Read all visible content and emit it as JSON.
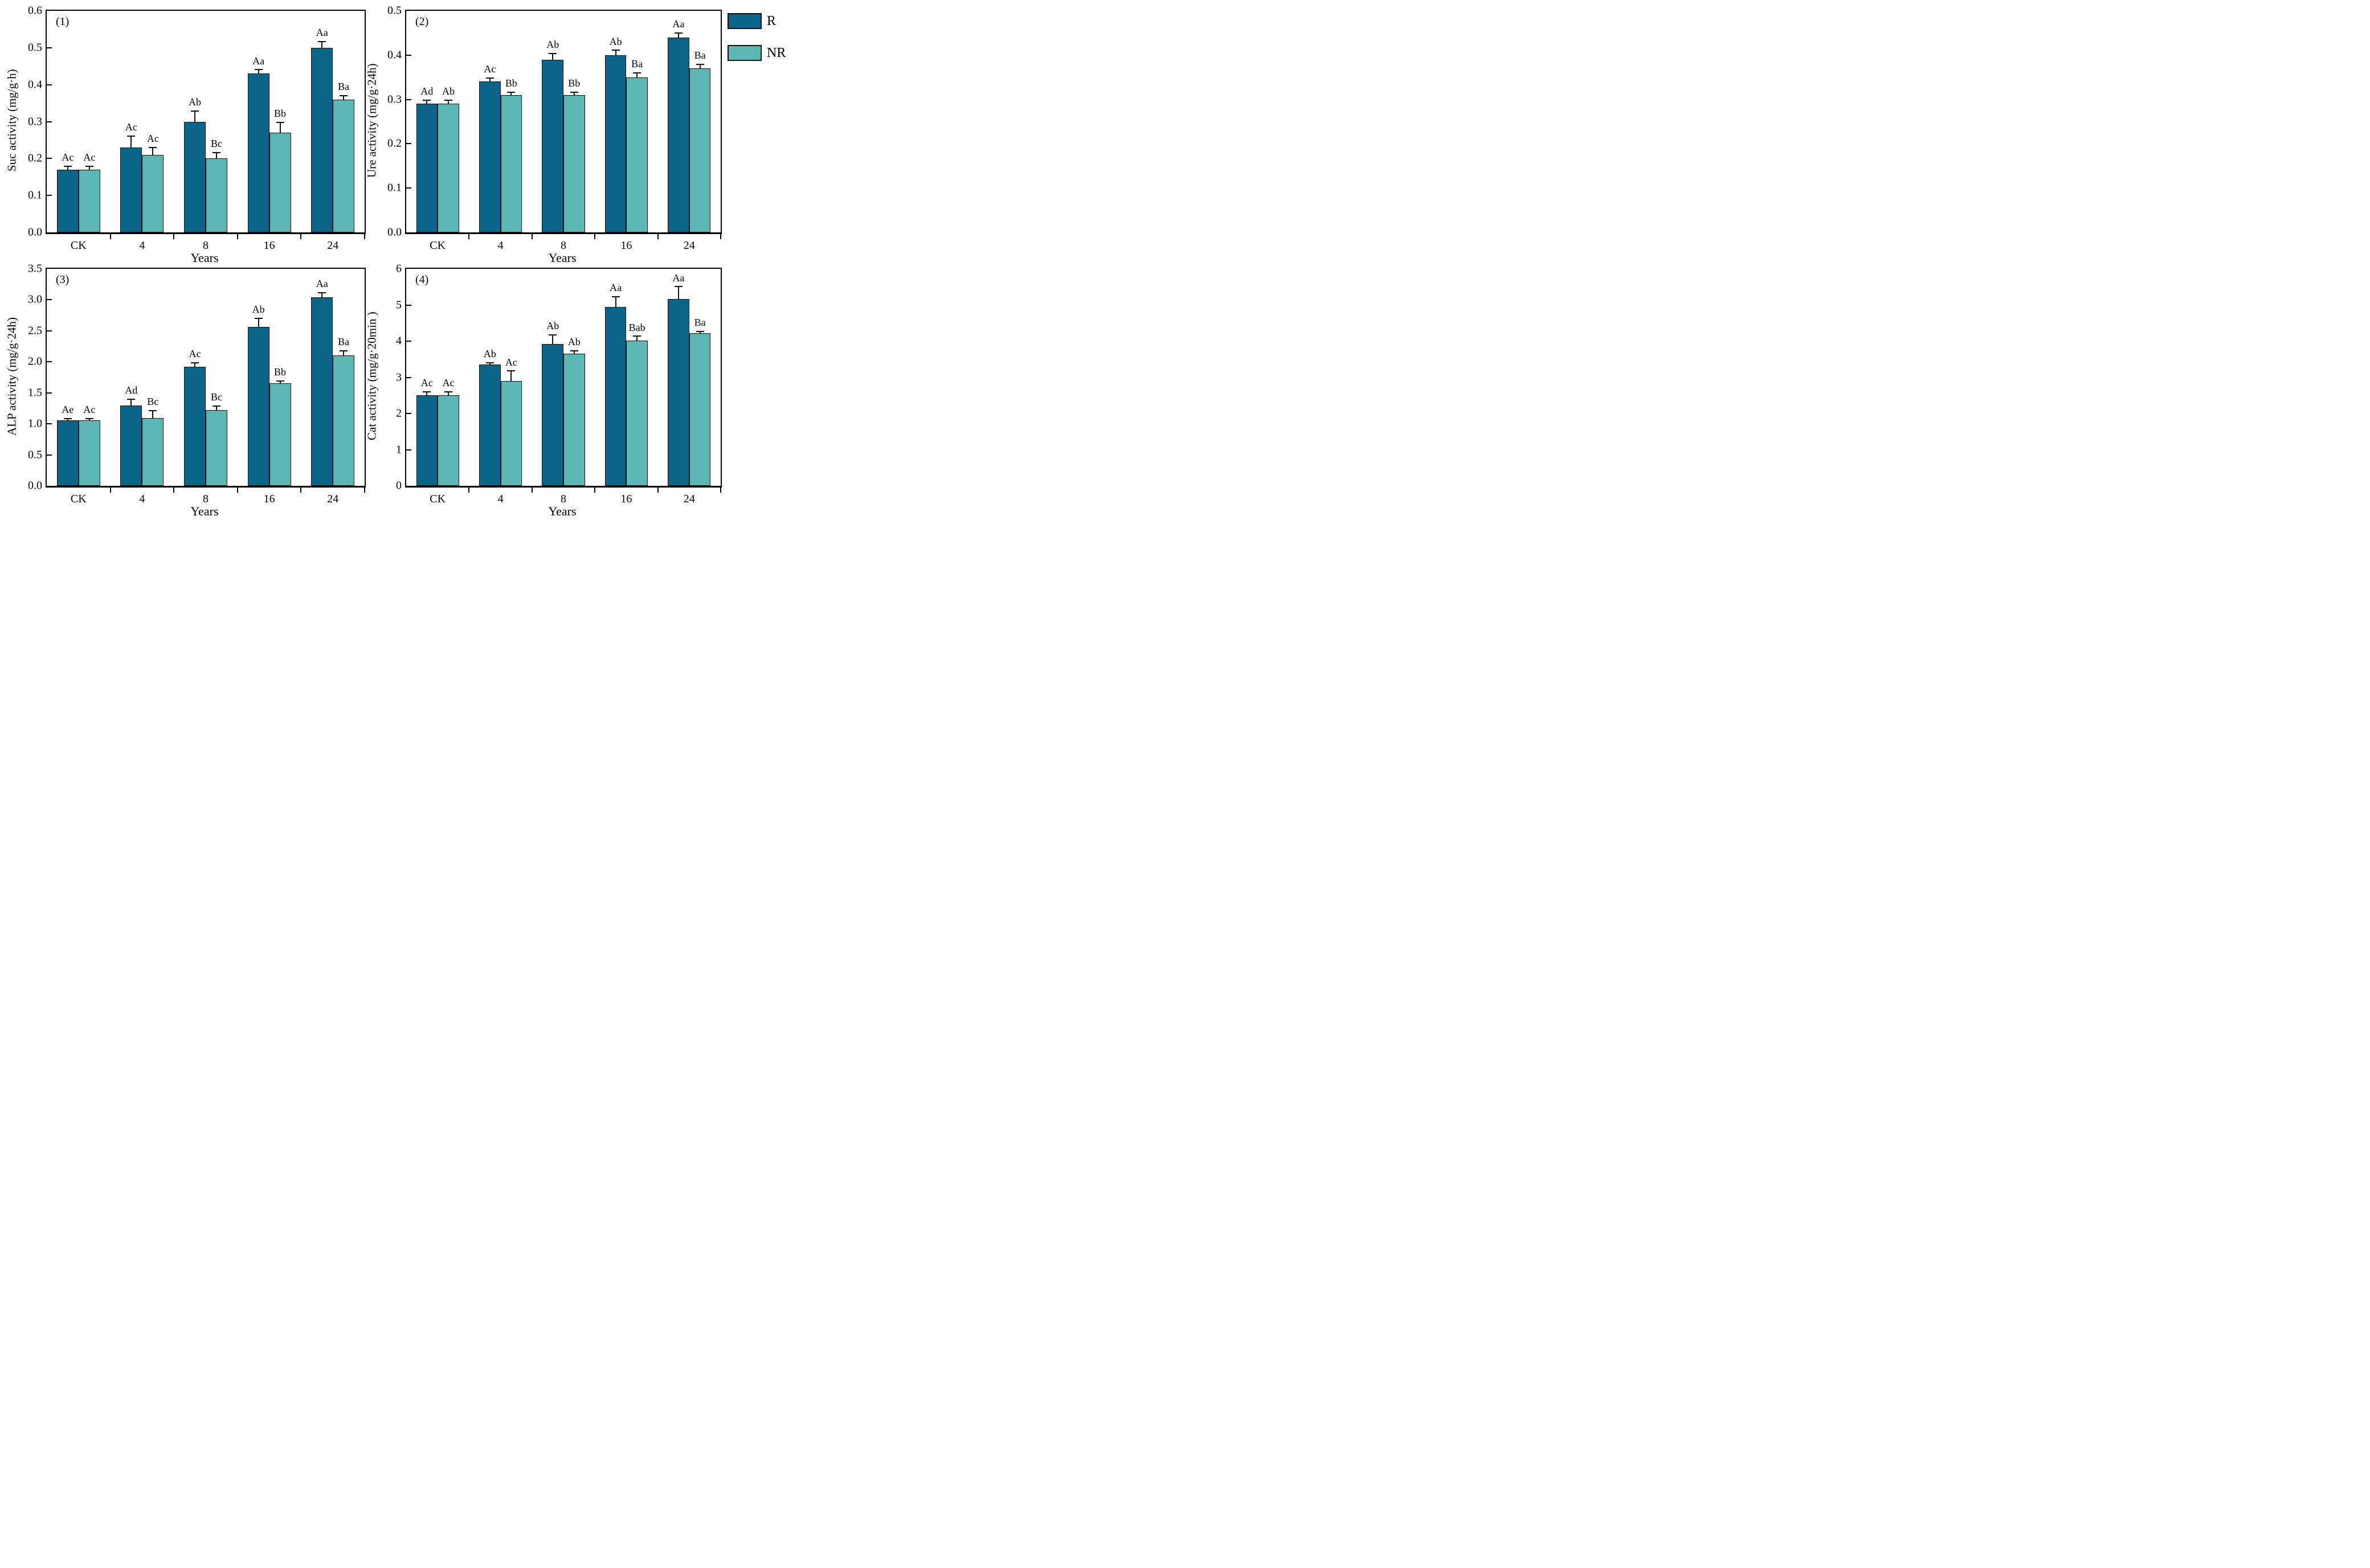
{
  "figure": {
    "xlabel": "Years",
    "categories": [
      "CK",
      "4",
      "8",
      "16",
      "24"
    ],
    "legend": {
      "position": "top-right-outside",
      "items": [
        {
          "label": "R",
          "color": "#0a6588"
        },
        {
          "label": "NR",
          "color": "#5cb6b1"
        }
      ]
    },
    "colors": {
      "r_fill": "#0a6588",
      "nr_fill": "#5cb6b1",
      "axis": "#000000",
      "outline": "#0f0f0f"
    }
  },
  "chart_data": [
    {
      "type": "bar",
      "panel_label": "(1)",
      "ylabel": "Suc activity (mg/g·h)",
      "xlabel": "Years",
      "categories": [
        "CK",
        "4",
        "8",
        "16",
        "24"
      ],
      "ylim": [
        0,
        0.6
      ],
      "ytick_step": 0.1,
      "ytick_decimals": 1,
      "grid": false,
      "series": [
        {
          "name": "R",
          "color": "#0a6588",
          "values": [
            0.17,
            0.23,
            0.3,
            0.43,
            0.5
          ],
          "errors": [
            0.01,
            0.033,
            0.03,
            0.012,
            0.018
          ],
          "letters": [
            "Ac",
            "Ac",
            "Ab",
            "Aa",
            "Aa"
          ]
        },
        {
          "name": "NR",
          "color": "#5cb6b1",
          "values": [
            0.17,
            0.21,
            0.2,
            0.27,
            0.36
          ],
          "errors": [
            0.01,
            0.021,
            0.018,
            0.03,
            0.012
          ],
          "letters": [
            "Ac",
            "Ac",
            "Bc",
            "Bb",
            "Ba"
          ]
        }
      ]
    },
    {
      "type": "bar",
      "panel_label": "(2)",
      "ylabel": "Ure activity (mg/g·24h)",
      "xlabel": "Years",
      "categories": [
        "CK",
        "4",
        "8",
        "16",
        "24"
      ],
      "ylim": [
        0,
        0.5
      ],
      "ytick_step": 0.1,
      "ytick_decimals": 1,
      "grid": false,
      "series": [
        {
          "name": "R",
          "color": "#0a6588",
          "values": [
            0.29,
            0.34,
            0.39,
            0.4,
            0.44
          ],
          "errors": [
            0.01,
            0.01,
            0.015,
            0.012,
            0.011
          ],
          "letters": [
            "Ad",
            "Ac",
            "Ab",
            "Ab",
            "Aa"
          ]
        },
        {
          "name": "NR",
          "color": "#5cb6b1",
          "values": [
            0.29,
            0.31,
            0.31,
            0.35,
            0.37
          ],
          "errors": [
            0.01,
            0.007,
            0.007,
            0.011,
            0.011
          ],
          "letters": [
            "Ab",
            "Bb",
            "Bb",
            "Ba",
            "Ba"
          ]
        }
      ]
    },
    {
      "type": "bar",
      "panel_label": "(3)",
      "ylabel": "ALP activity (mg/g·24h)",
      "xlabel": "Years",
      "categories": [
        "CK",
        "4",
        "8",
        "16",
        "24"
      ],
      "ylim": [
        0,
        3.5
      ],
      "ytick_step": 0.5,
      "ytick_decimals": 1,
      "grid": false,
      "series": [
        {
          "name": "R",
          "color": "#0a6588",
          "values": [
            1.06,
            1.3,
            1.92,
            2.56,
            3.04
          ],
          "errors": [
            0.03,
            0.11,
            0.07,
            0.15,
            0.08
          ],
          "letters": [
            "Ae",
            "Ad",
            "Ac",
            "Ab",
            "Aa"
          ]
        },
        {
          "name": "NR",
          "color": "#5cb6b1",
          "values": [
            1.06,
            1.09,
            1.22,
            1.65,
            2.1
          ],
          "errors": [
            0.03,
            0.13,
            0.08,
            0.05,
            0.09
          ],
          "letters": [
            "Ac",
            "Bc",
            "Bc",
            "Bb",
            "Ba"
          ]
        }
      ]
    },
    {
      "type": "bar",
      "panel_label": "(4)",
      "ylabel": "Cat activity (mg/g·20min )",
      "xlabel": "Years",
      "categories": [
        "CK",
        "4",
        "8",
        "16",
        "24"
      ],
      "ylim": [
        0,
        6
      ],
      "ytick_step": 1,
      "ytick_decimals": 0,
      "grid": false,
      "series": [
        {
          "name": "R",
          "color": "#0a6588",
          "values": [
            2.5,
            3.35,
            3.92,
            4.95,
            5.17
          ],
          "errors": [
            0.12,
            0.07,
            0.27,
            0.3,
            0.35
          ],
          "letters": [
            "Ac",
            "Ab",
            "Ab",
            "Aa",
            "Aa"
          ]
        },
        {
          "name": "NR",
          "color": "#5cb6b1",
          "values": [
            2.5,
            2.9,
            3.66,
            4.02,
            4.22
          ],
          "errors": [
            0.12,
            0.29,
            0.09,
            0.13,
            0.06
          ],
          "letters": [
            "Ac",
            "Ac",
            "Ab",
            "Bab",
            "Ba"
          ]
        }
      ]
    }
  ]
}
